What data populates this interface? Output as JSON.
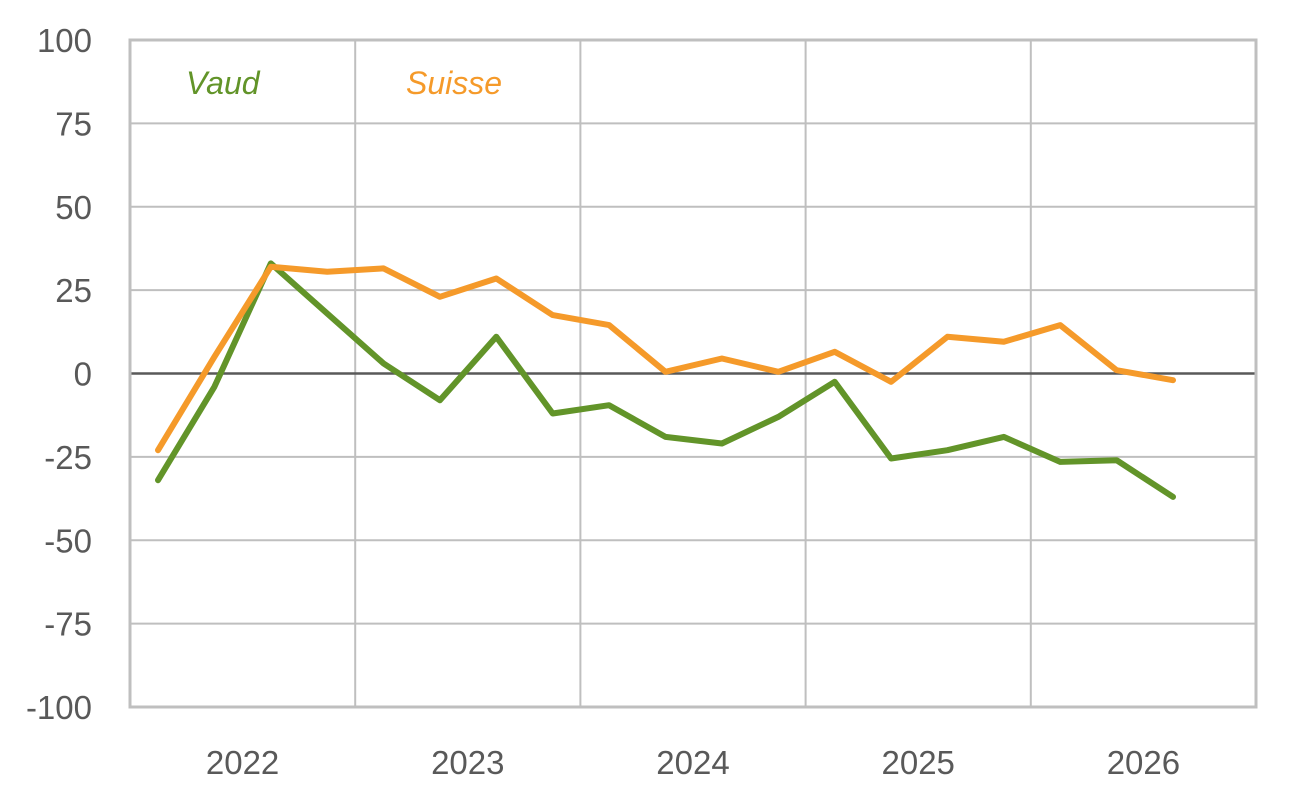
{
  "chart_data": {
    "type": "line",
    "title": "",
    "xlabel": "",
    "ylabel": "",
    "ylim": [
      -100,
      100
    ],
    "yticks": [
      "100",
      "75",
      "50",
      "25",
      "0",
      "-25",
      "-50",
      "-75",
      "-100"
    ],
    "ytick_values": [
      100,
      75,
      50,
      25,
      0,
      -25,
      -50,
      -75,
      -100
    ],
    "xticks": [
      "2022",
      "2023",
      "2024",
      "2025",
      "2026"
    ],
    "grid": true,
    "legend_placement": "top-left inside",
    "x": [
      "2022-Q1",
      "2022-Q2",
      "2022-Q3",
      "2022-Q4",
      "2023-Q1",
      "2023-Q2",
      "2023-Q3",
      "2023-Q4",
      "2024-Q1",
      "2024-Q2",
      "2024-Q3",
      "2024-Q4",
      "2025-Q1",
      "2025-Q2",
      "2025-Q3",
      "2025-Q4",
      "2026-Q1",
      "2026-Q2",
      "2026-Q3"
    ],
    "series": [
      {
        "name": "Vaud",
        "color": "#629429",
        "values": [
          -32,
          -4,
          33,
          18,
          3,
          -8,
          11,
          -12,
          -9.5,
          -19,
          -21,
          -13,
          -2.5,
          -25.5,
          -23,
          -19,
          -26.5,
          -26,
          -37
        ]
      },
      {
        "name": "Suisse",
        "color": "#F59A2A",
        "values": [
          -23,
          5,
          32,
          30.5,
          31.5,
          23,
          28.5,
          17.5,
          14.5,
          0.5,
          4.5,
          0.5,
          6.5,
          -2.5,
          11,
          9.5,
          14.5,
          1,
          -2
        ]
      }
    ]
  }
}
